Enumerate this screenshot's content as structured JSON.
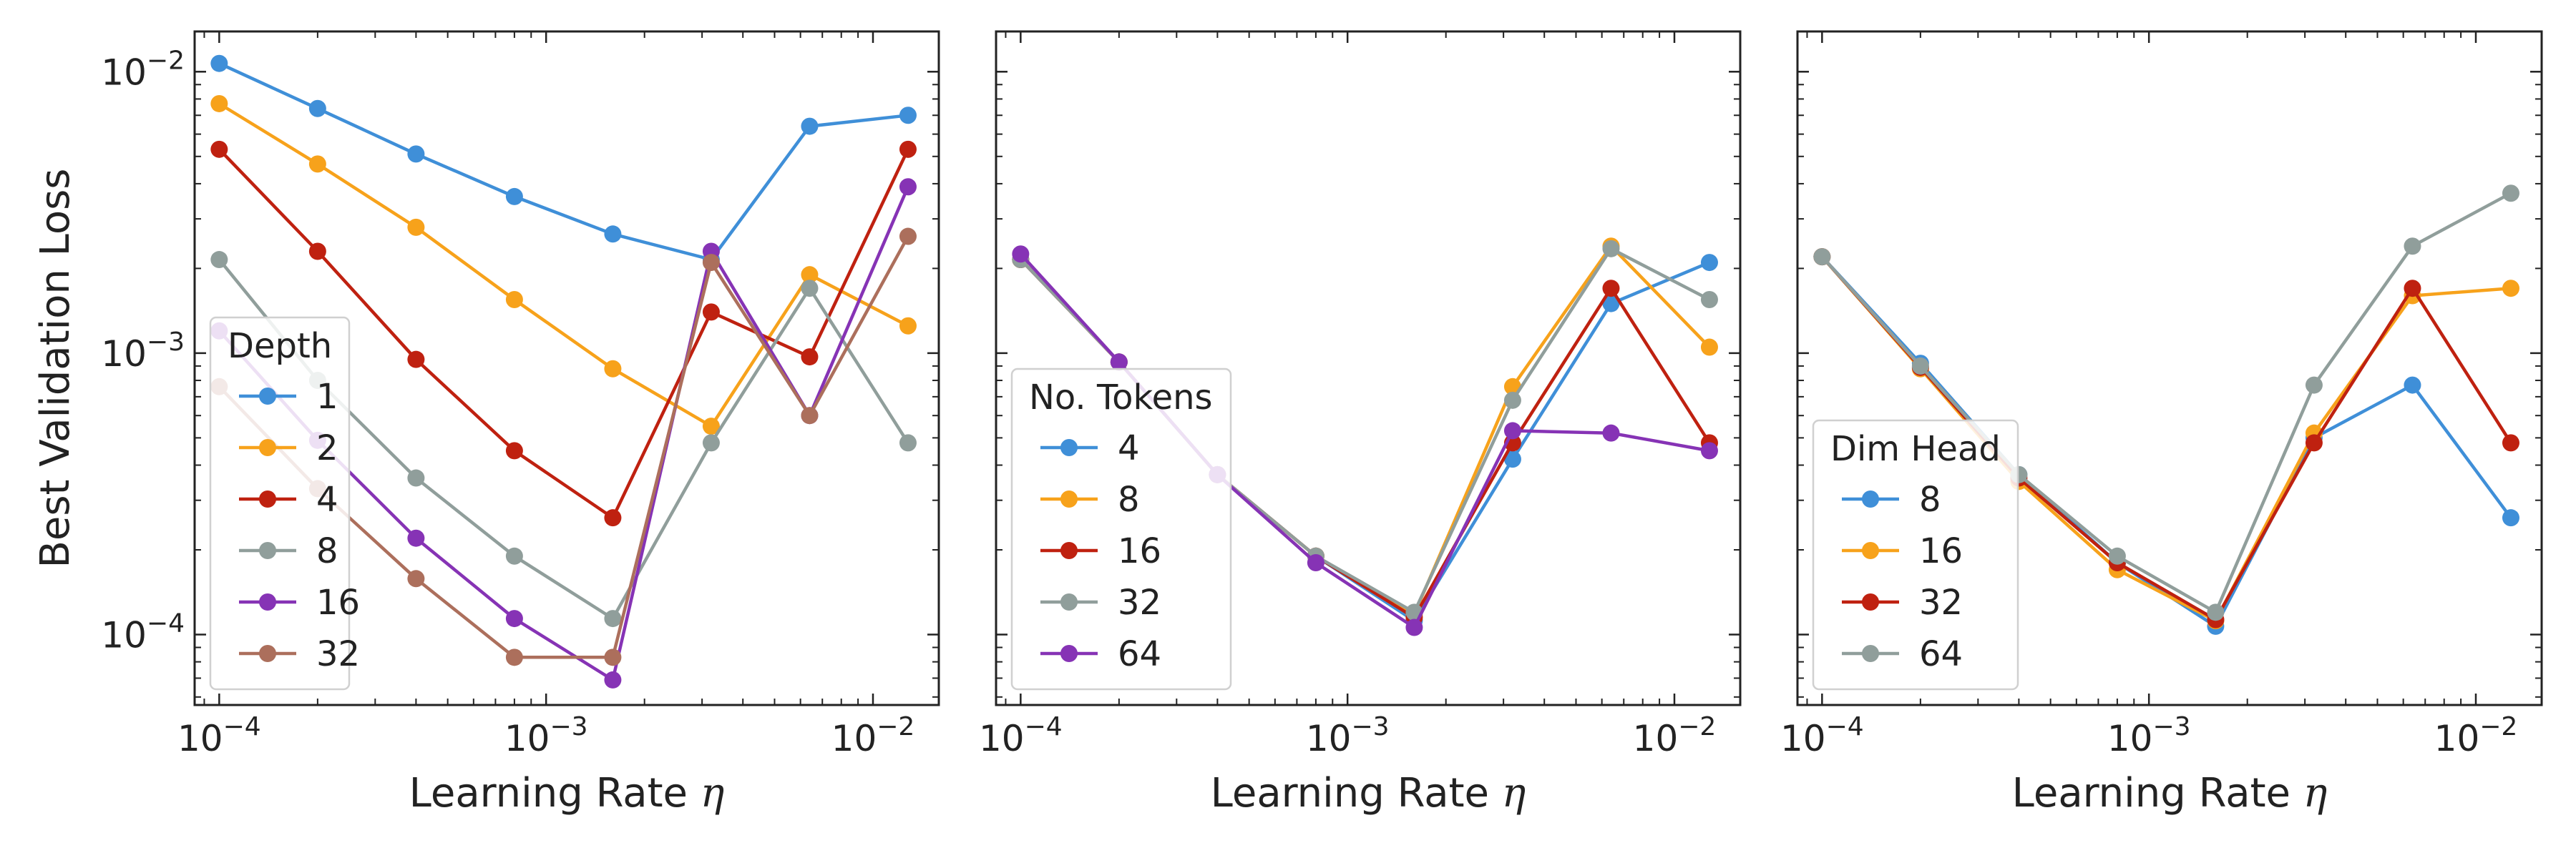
{
  "figure": {
    "ylabel": "Best Validation Loss",
    "xlabel_text": "Learning Rate",
    "xlabel_symbol": "η"
  },
  "axis_scale": {
    "x": "log",
    "y": "log",
    "xlim": [
      8.41e-05,
      0.0159
    ],
    "ylim": [
      5.62e-05,
      0.0139
    ],
    "x_major_ticks": [
      {
        "value": 0.0001,
        "base": "10",
        "exp": "−4"
      },
      {
        "value": 0.001,
        "base": "10",
        "exp": "−3"
      },
      {
        "value": 0.01,
        "base": "10",
        "exp": "−2"
      }
    ],
    "y_major_ticks": [
      {
        "value": 0.0001,
        "base": "10",
        "exp": "−4"
      },
      {
        "value": 0.001,
        "base": "10",
        "exp": "−3"
      },
      {
        "value": 0.01,
        "base": "10",
        "exp": "−2"
      }
    ],
    "grid": false
  },
  "chart_data": [
    {
      "type": "line",
      "marker": "circle",
      "x": [
        0.0001,
        0.0002,
        0.0004,
        0.0008,
        0.0016,
        0.0032,
        0.0064,
        0.0128
      ],
      "legend": {
        "title": "Depth",
        "position": "lower-left"
      },
      "series": [
        {
          "name": "1",
          "color": "#3f8fd8",
          "values": [
            0.0107,
            0.0074,
            0.0051,
            0.0036,
            0.00265,
            0.00215,
            0.0064,
            0.007
          ]
        },
        {
          "name": "2",
          "color": "#f7a21b",
          "values": [
            0.0077,
            0.0047,
            0.0028,
            0.00155,
            0.00088,
            0.00055,
            0.0019,
            0.00125
          ]
        },
        {
          "name": "4",
          "color": "#bf2110",
          "values": [
            0.0053,
            0.0023,
            0.00095,
            0.00045,
            0.00026,
            0.0014,
            0.00097,
            0.0053
          ]
        },
        {
          "name": "8",
          "color": "#909e9b",
          "values": [
            0.00215,
            0.0008,
            0.00036,
            0.00019,
            0.000114,
            0.00048,
            0.0017,
            0.00048
          ]
        },
        {
          "name": "16",
          "color": "#8633b5",
          "values": [
            0.0012,
            0.00049,
            0.00022,
            0.000114,
            6.9e-05,
            0.0023,
            0.0006,
            0.0039
          ]
        },
        {
          "name": "32",
          "color": "#ac6f5c",
          "values": [
            0.00076,
            0.00033,
            0.000158,
            8.3e-05,
            8.3e-05,
            0.0021,
            0.0006,
            0.0026
          ]
        }
      ]
    },
    {
      "type": "line",
      "marker": "circle",
      "x": [
        0.0001,
        0.0002,
        0.0004,
        0.0008,
        0.0016,
        0.0032,
        0.0064,
        0.0128
      ],
      "legend": {
        "title": "No. Tokens",
        "position": "lower-left"
      },
      "series": [
        {
          "name": "4",
          "color": "#3f8fd8",
          "values": [
            0.00215,
            0.00093,
            0.00037,
            0.00019,
            0.000112,
            0.00042,
            0.0015,
            0.0021
          ]
        },
        {
          "name": "8",
          "color": "#f7a21b",
          "values": [
            0.00215,
            0.00093,
            0.00037,
            0.00019,
            0.000118,
            0.00076,
            0.0024,
            0.00105
          ]
        },
        {
          "name": "16",
          "color": "#bf2110",
          "values": [
            0.00215,
            0.00093,
            0.00037,
            0.00019,
            0.000115,
            0.00048,
            0.0017,
            0.00048
          ]
        },
        {
          "name": "32",
          "color": "#909e9b",
          "values": [
            0.00215,
            0.00093,
            0.00037,
            0.00019,
            0.00012,
            0.00068,
            0.00235,
            0.00155
          ]
        },
        {
          "name": "64",
          "color": "#8633b5",
          "values": [
            0.00225,
            0.00093,
            0.00037,
            0.00018,
            0.000106,
            0.00053,
            0.00052,
            0.00045
          ]
        }
      ]
    },
    {
      "type": "line",
      "marker": "circle",
      "x": [
        0.0001,
        0.0002,
        0.0004,
        0.0008,
        0.0016,
        0.0032,
        0.0064,
        0.0128
      ],
      "legend": {
        "title": "Dim Head",
        "position": "lower-left"
      },
      "series": [
        {
          "name": "8",
          "color": "#3f8fd8",
          "values": [
            0.0022,
            0.00092,
            0.00037,
            0.00018,
            0.000107,
            0.0005,
            0.00077,
            0.00026
          ]
        },
        {
          "name": "16",
          "color": "#f7a21b",
          "values": [
            0.0022,
            0.00088,
            0.00035,
            0.00017,
            0.000112,
            0.00052,
            0.0016,
            0.0017
          ]
        },
        {
          "name": "32",
          "color": "#bf2110",
          "values": [
            0.0022,
            0.00089,
            0.00036,
            0.00018,
            0.000113,
            0.00048,
            0.0017,
            0.00048
          ]
        },
        {
          "name": "64",
          "color": "#909e9b",
          "values": [
            0.0022,
            0.0009,
            0.00037,
            0.00019,
            0.00012,
            0.00077,
            0.0024,
            0.0037
          ]
        }
      ]
    }
  ]
}
